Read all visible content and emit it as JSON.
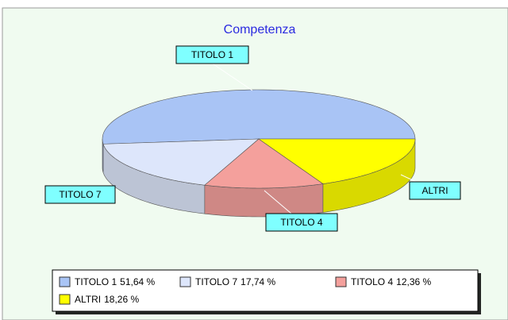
{
  "chart_data": {
    "type": "pie3d",
    "title": "Competenza",
    "categories": [
      "TITOLO 1",
      "TITOLO 7",
      "TITOLO 4",
      "ALTRI"
    ],
    "values": [
      51.64,
      17.74,
      12.36,
      18.26
    ],
    "value_labels": [
      "51,64 %",
      "17,74 %",
      "12,36 %",
      "18,26 %"
    ],
    "colors": [
      "#a9c4f5",
      "#dde6fb",
      "#f4a09c",
      "#ffff00"
    ]
  }
}
